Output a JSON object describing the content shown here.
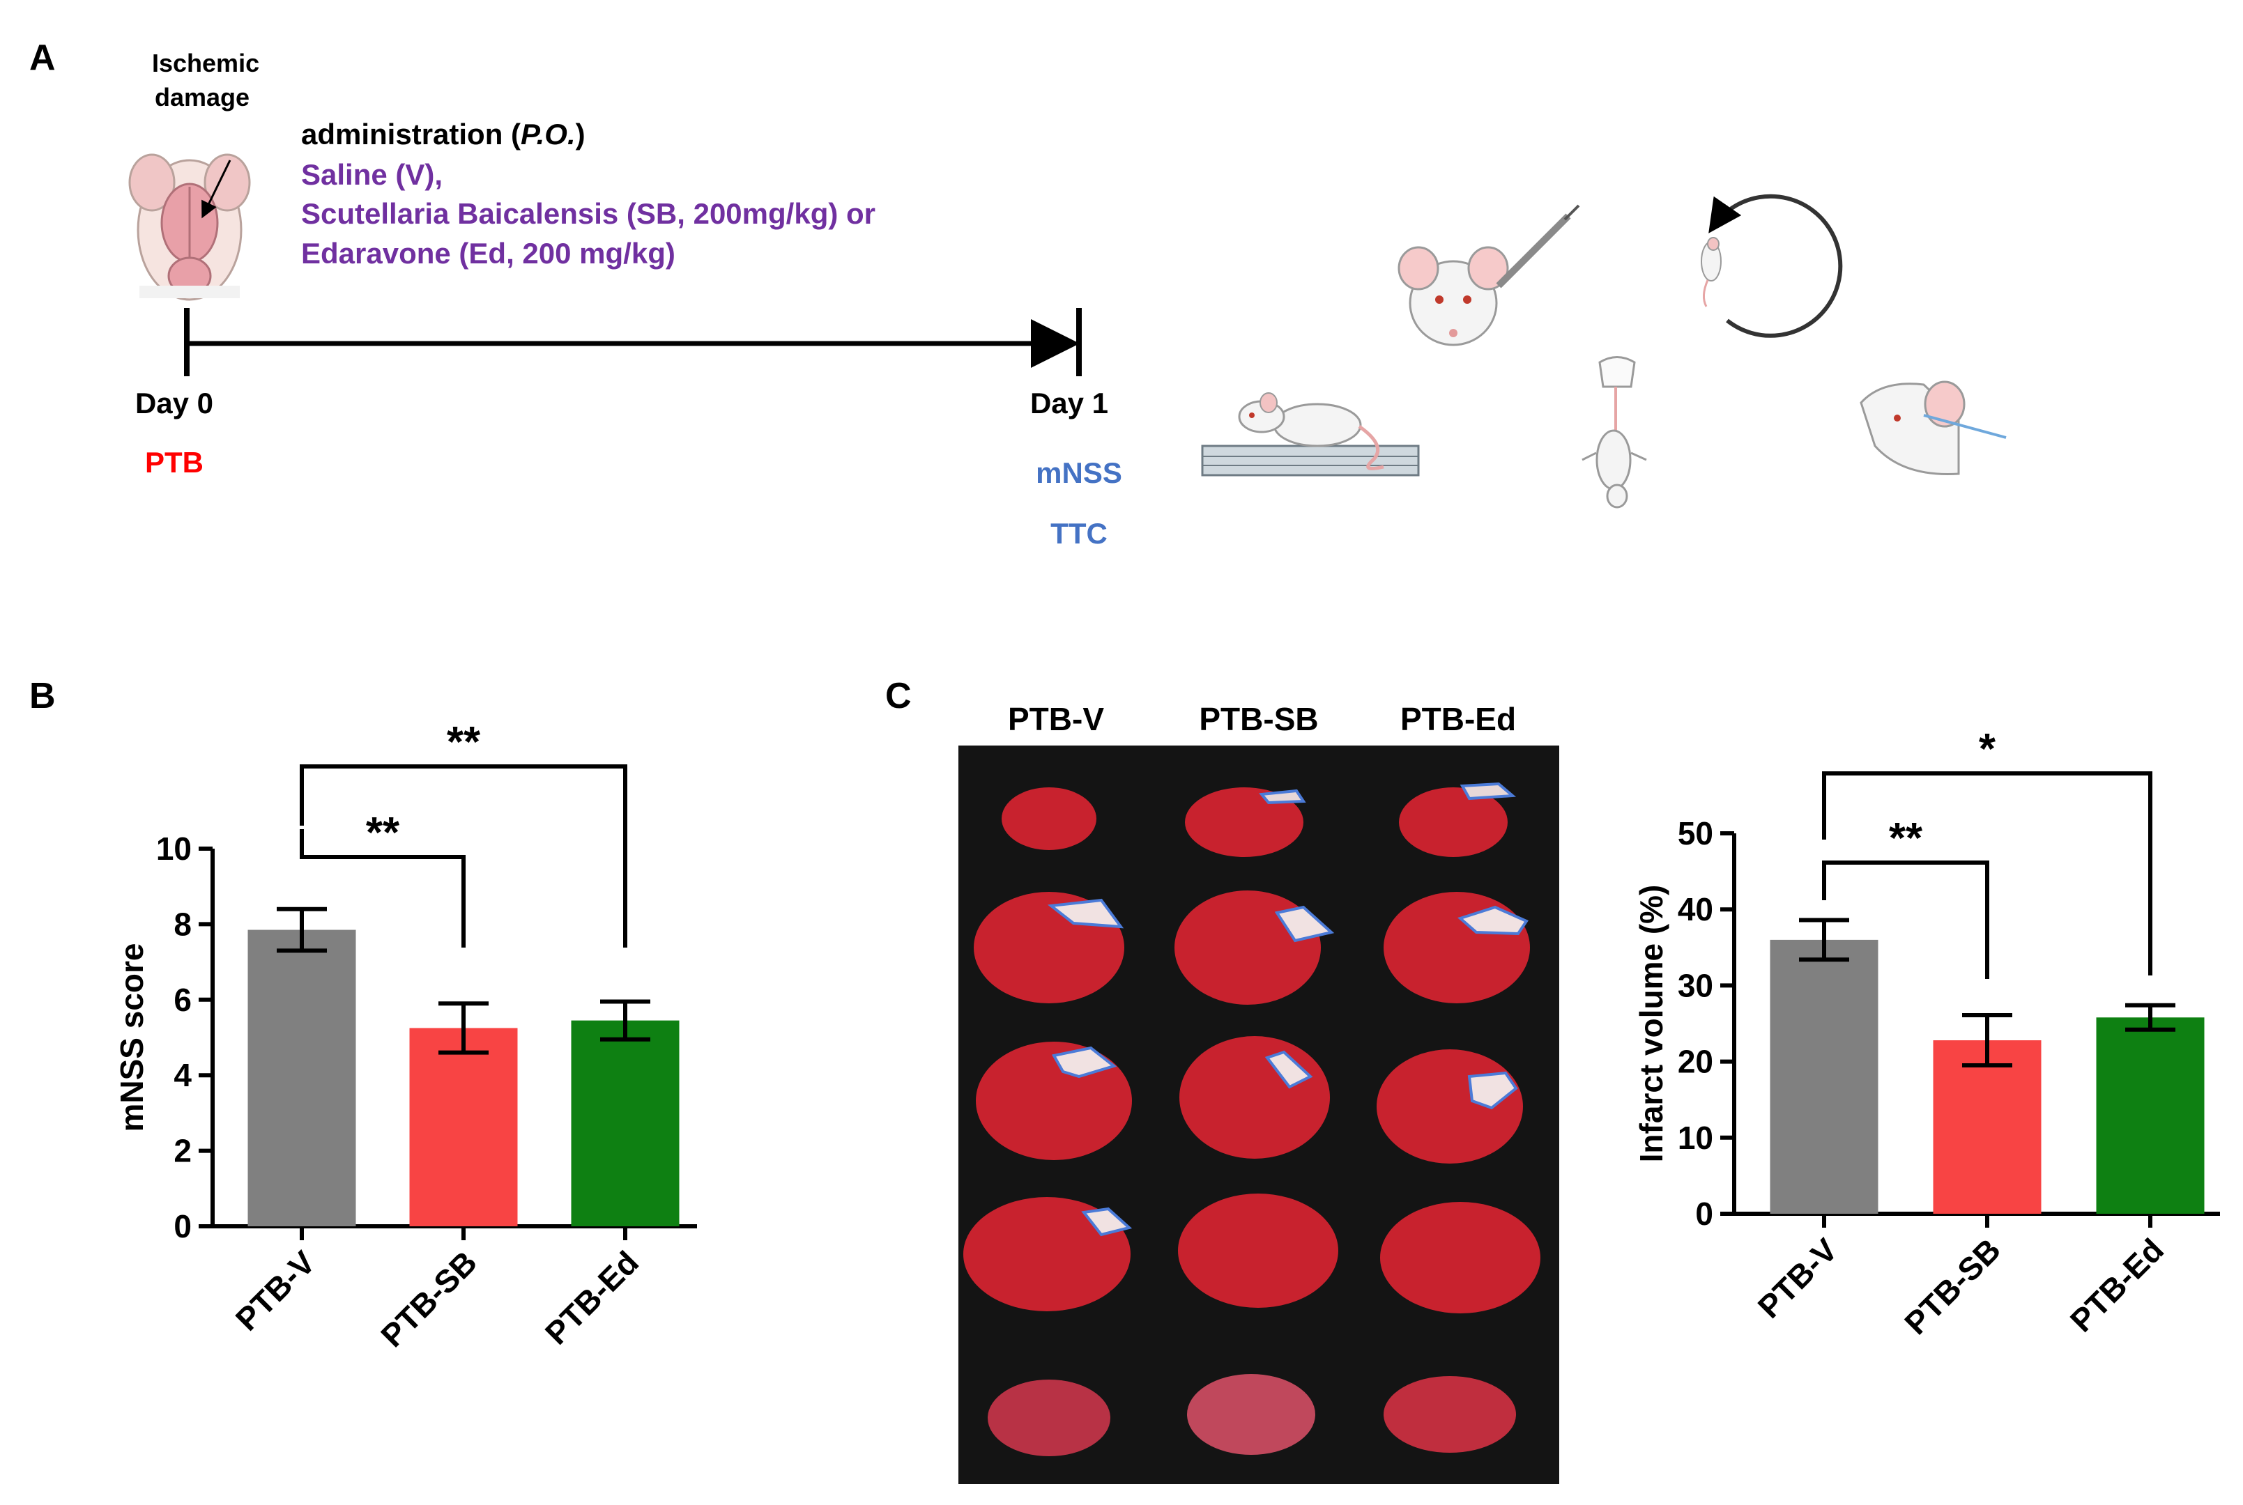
{
  "panel_a": {
    "label": "A",
    "ischemic_line1": "Ischemic",
    "ischemic_line2": "damage",
    "admin_prefix": "administration (",
    "admin_italic": "P.O.",
    "admin_suffix": ")",
    "treatments": [
      "Saline (V),",
      "Scutellaria Baicalensis (SB, 200mg/kg) or",
      "Edaravone (Ed, 200 mg/kg)"
    ],
    "day0": "Day 0",
    "day0_event": "PTB",
    "day1": "Day 1",
    "day1_events": [
      "mNSS",
      "TTC"
    ]
  },
  "panel_b": {
    "label": "B"
  },
  "panel_c": {
    "label": "C",
    "image_columns": [
      "PTB-V",
      "PTB-SB",
      "PTB-Ed"
    ]
  },
  "colors": {
    "vehicle": "#808080",
    "sb": "#f84444",
    "ed": "#0e8012",
    "treatment_text": "#7030a0",
    "ptb_text": "#ff0000",
    "readout_text": "#4472c4",
    "tissue": "#c8222e",
    "infarct_outline": "#4b7bd8"
  },
  "chart_data": [
    {
      "type": "bar",
      "categories": [
        "PTB-V",
        "PTB-SB",
        "PTB-Ed"
      ],
      "values": [
        7.85,
        5.25,
        5.45
      ],
      "errors": [
        0.55,
        0.65,
        0.5
      ],
      "ylabel": "mNSS score",
      "ylim": [
        0,
        10
      ],
      "yticks": [
        "0",
        "2",
        "4",
        "6",
        "8",
        "10"
      ],
      "significance": [
        {
          "from": 0,
          "to": 1,
          "label": "**"
        },
        {
          "from": 0,
          "to": 2,
          "label": "**"
        }
      ]
    },
    {
      "type": "bar",
      "categories": [
        "PTB-V",
        "PTB-SB",
        "PTB-Ed"
      ],
      "values": [
        36.0,
        22.8,
        25.8
      ],
      "errors": [
        2.6,
        3.3,
        1.6
      ],
      "ylabel": "Infarct volume (%)",
      "ylim": [
        0,
        50
      ],
      "yticks": [
        "0",
        "10",
        "20",
        "30",
        "40",
        "50"
      ],
      "significance": [
        {
          "from": 0,
          "to": 1,
          "label": "**"
        },
        {
          "from": 0,
          "to": 2,
          "label": "*"
        }
      ]
    }
  ]
}
